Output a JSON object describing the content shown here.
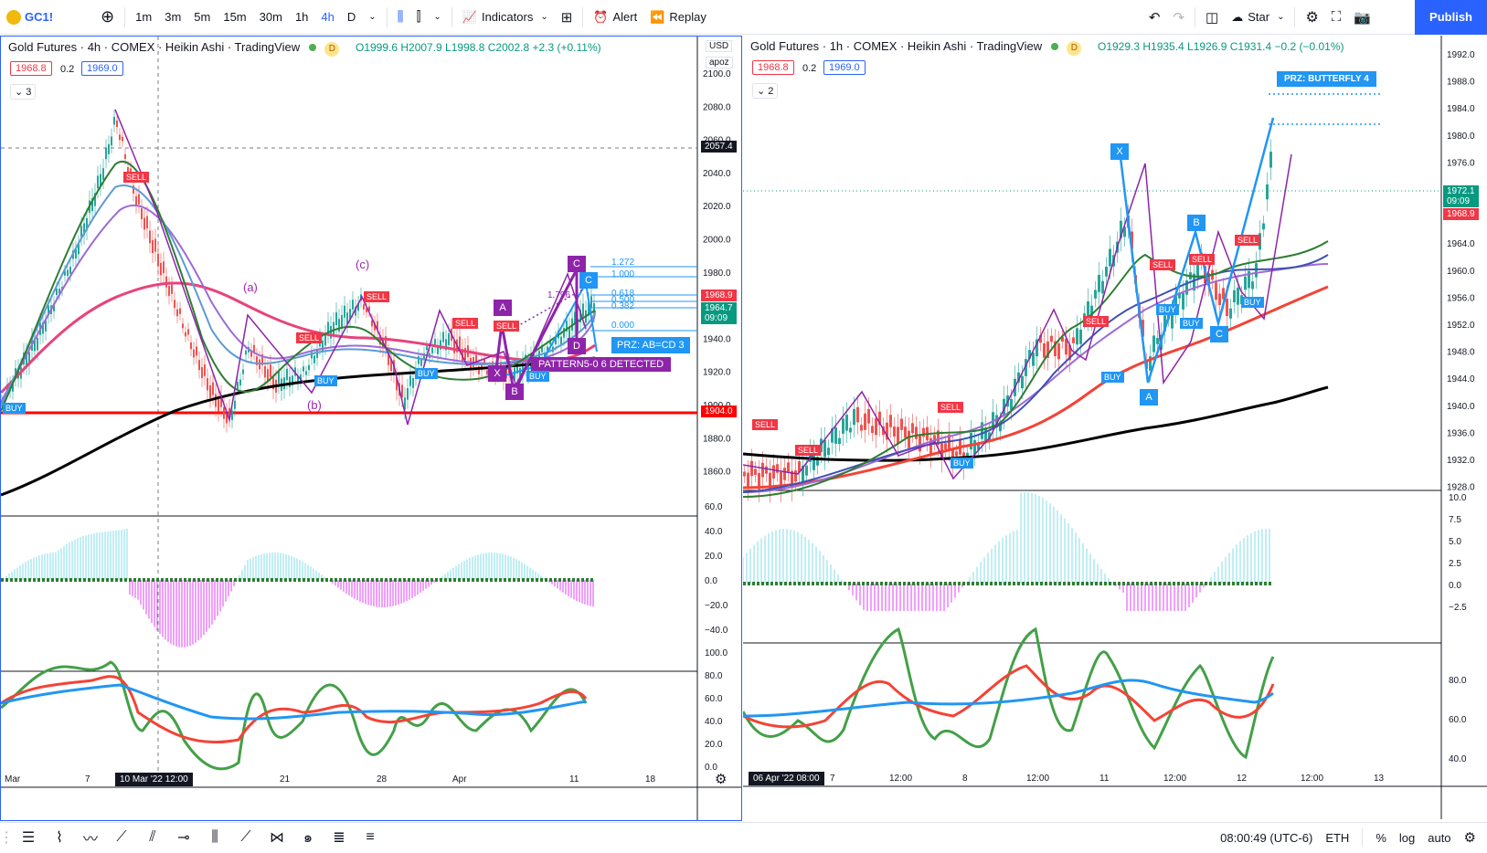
{
  "toolbar": {
    "symbol": "GC1!",
    "intervals": [
      "1m",
      "3m",
      "5m",
      "15m",
      "30m",
      "1h",
      "4h",
      "D"
    ],
    "active_interval": "4h",
    "indicators_label": "Indicators",
    "alert_label": "Alert",
    "replay_label": "Replay",
    "layout_name": "Star",
    "publish_label": "Publish"
  },
  "left_chart": {
    "title": "Gold Futures · 4h · COMEX · Heikin Ashi · TradingView",
    "ohlc": "O1999.6 H2007.9 L1998.8 C2002.8 +2.3 (+0.11%)",
    "bid": "1968.8",
    "spread": "0.2",
    "ask": "1969.0",
    "collapse_count": "3",
    "currency": "USD",
    "scale_mode": "apoz",
    "crosshair_price": "2057.4",
    "price_ticks": [
      "2100.0",
      "2080.0",
      "2060.0",
      "2040.0",
      "2020.0",
      "2000.0",
      "1980.0",
      "1960.0",
      "1940.0",
      "1920.0",
      "1900.0",
      "1880.0",
      "1860.0"
    ],
    "last_price": "1968.9",
    "current_price": "1964.7",
    "countdown": "09:09",
    "support_price": "1904.0",
    "fib_levels": [
      "1.272",
      "1.000",
      "0.618",
      "0.500",
      "0.382",
      "0.000"
    ],
    "fib_ratio": "1.796",
    "wave_labels": [
      "(a)",
      "(b)",
      "(c)"
    ],
    "pattern_points": [
      "A",
      "B",
      "C",
      "D",
      "X",
      "C"
    ],
    "prz_label": "PRZ: AB=CD 3",
    "pattern_detected": "PATTERN5-0 6 DETECTED",
    "osc_ticks": [
      "60.0",
      "40.0",
      "20.0",
      "0.0",
      "−20.0",
      "−40.0"
    ],
    "rsi_ticks": [
      "100.0",
      "80.0",
      "60.0",
      "40.0",
      "20.0",
      "0.0"
    ],
    "time_ticks": [
      "Mar",
      "7",
      "21",
      "28",
      "Apr",
      "11",
      "18"
    ],
    "crosshair_time": "10 Mar '22  12:00"
  },
  "right_chart": {
    "title": "Gold Futures · 1h · COMEX · Heikin Ashi · TradingView",
    "ohlc": "O1929.3 H1935.4 L1926.9 C1931.4 −0.2 (−0.01%)",
    "bid": "1968.8",
    "spread": "0.2",
    "ask": "1969.0",
    "collapse_count": "2",
    "price_ticks": [
      "1992.0",
      "1988.0",
      "1984.0",
      "1980.0",
      "1976.0",
      "1972.0",
      "1968.0",
      "1964.0",
      "1960.0",
      "1956.0",
      "1952.0",
      "1948.0",
      "1944.0",
      "1940.0",
      "1936.0",
      "1932.0",
      "1928.0"
    ],
    "current_price": "1972.1",
    "countdown": "09:09",
    "last_price": "1968.9",
    "pattern_points": [
      "X",
      "A",
      "B",
      "C"
    ],
    "prz_label": "PRZ: BUTTERFLY 4",
    "osc_ticks": [
      "10.0",
      "7.5",
      "5.0",
      "2.5",
      "0.0",
      "−2.5"
    ],
    "rsi_ticks": [
      "80.0",
      "60.0",
      "40.0"
    ],
    "time_ticks": [
      "7",
      "12:00",
      "8",
      "12:00",
      "11",
      "12:00",
      "12",
      "12:00",
      "13"
    ],
    "crosshair_time": "06 Apr '22  08:00"
  },
  "signals": {
    "sell": "SELL",
    "buy": "BUY"
  },
  "statusbar": {
    "clock": "08:00:49 (UTC-6)",
    "session": "ETH",
    "percent": "%",
    "log": "log",
    "auto": "auto"
  },
  "colors": {
    "accent": "#2962ff",
    "sell": "#f23645",
    "buy": "#2196f3",
    "pattern": "#9c27b0",
    "support": "#ff0000"
  }
}
